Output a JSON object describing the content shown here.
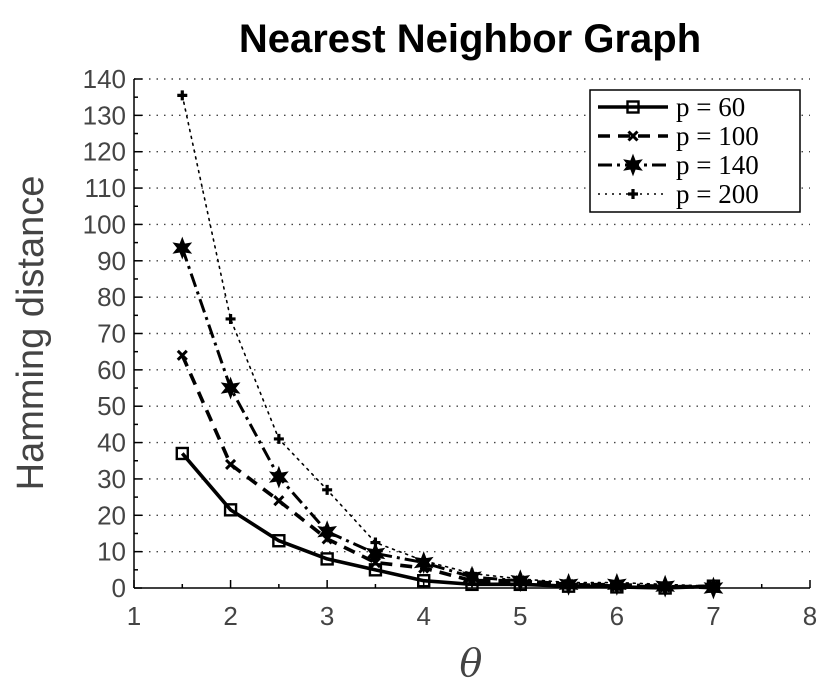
{
  "chart_data": {
    "type": "line",
    "title": "Nearest Neighbor Graph",
    "xlabel": "θ",
    "ylabel": "Hamming distance",
    "xlim": [
      1,
      8
    ],
    "ylim": [
      0,
      140
    ],
    "xticks": [
      "1",
      "2",
      "3",
      "4",
      "5",
      "6",
      "7",
      "8"
    ],
    "yticks": [
      "0",
      "10",
      "20",
      "30",
      "40",
      "50",
      "60",
      "70",
      "80",
      "90",
      "100",
      "110",
      "120",
      "130",
      "140"
    ],
    "grid": "horizontal-dotted",
    "legend_position": "top-right",
    "series": [
      {
        "name": "p = 60",
        "style": "solid",
        "marker": "square",
        "x": [
          1.5,
          2,
          2.5,
          3,
          3.5,
          4,
          4.5,
          5,
          5.5,
          6,
          6.5,
          7
        ],
        "y": [
          37,
          21.5,
          13,
          8,
          5,
          2,
          1,
          1,
          0.5,
          0.3,
          0,
          0.5
        ]
      },
      {
        "name": "p = 100",
        "style": "dashed",
        "marker": "x",
        "x": [
          1.5,
          2,
          2.5,
          3,
          3.5,
          4,
          4.5,
          5,
          5.5,
          6,
          6.5,
          7
        ],
        "y": [
          64,
          34,
          24,
          13.5,
          7,
          5.5,
          2,
          2,
          1,
          0.5,
          0.3,
          0.5
        ]
      },
      {
        "name": "p = 140",
        "style": "dashdot",
        "marker": "hexagram",
        "x": [
          1.5,
          2,
          2.5,
          3,
          3.5,
          4,
          4.5,
          5,
          5.5,
          6,
          6.5,
          7
        ],
        "y": [
          93.5,
          55,
          30.5,
          15.5,
          9.5,
          7,
          3,
          2,
          1,
          1,
          0.5,
          0
        ]
      },
      {
        "name": "p = 200",
        "style": "dotted",
        "marker": "plus",
        "x": [
          1.5,
          2,
          2.5,
          3,
          3.5,
          4,
          4.5,
          5,
          5.5,
          6,
          6.5,
          7
        ],
        "y": [
          135.5,
          74,
          41,
          27,
          12.5,
          7.5,
          4,
          2.5,
          1.5,
          1.5,
          1,
          0.5
        ]
      }
    ]
  }
}
